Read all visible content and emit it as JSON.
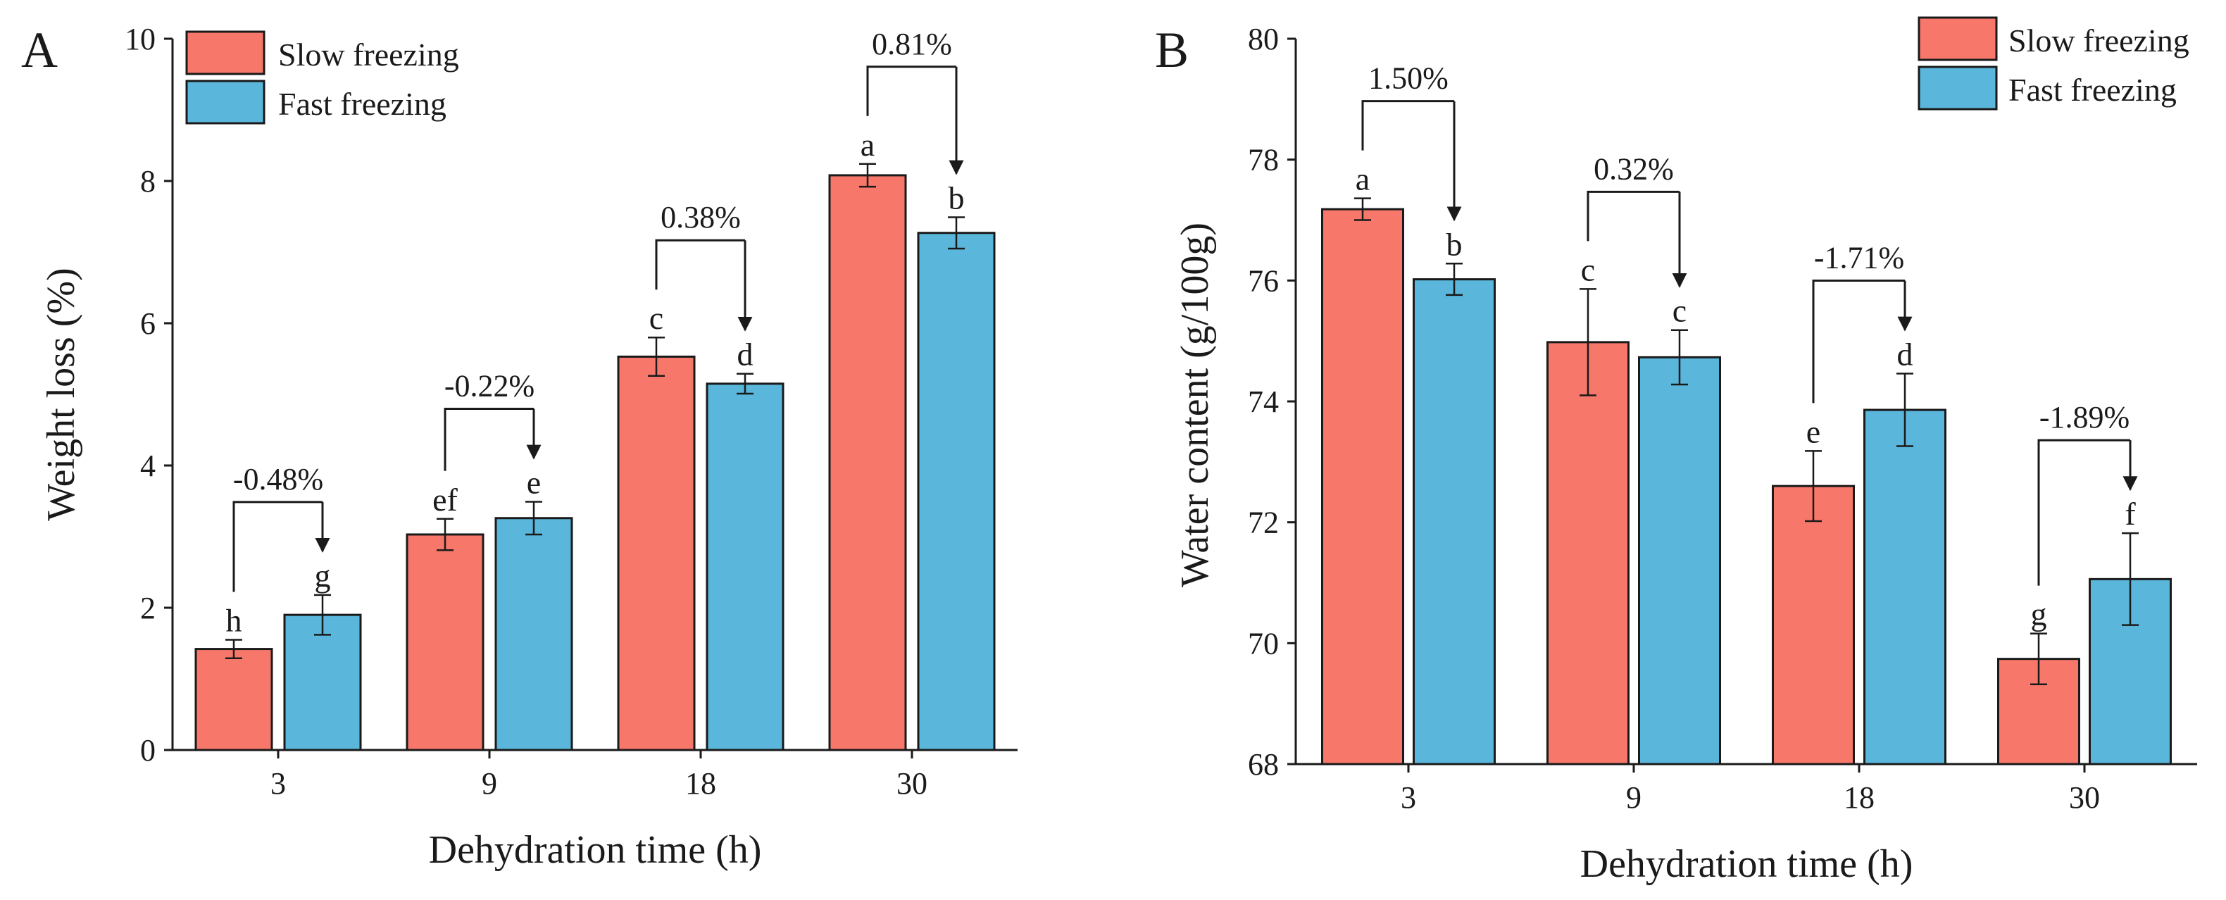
{
  "colors": {
    "slow": "#f7786b",
    "fast": "#5ab6da",
    "ink": "#1a1a1a"
  },
  "chart_data": [
    {
      "type": "bar",
      "panel": "A",
      "legend_position": "top-left",
      "xlabel": "Dehydration time (h)",
      "ylabel": "Weight loss (%)",
      "ylim": [
        0,
        10
      ],
      "yticks": [
        "0",
        "2",
        "4",
        "6",
        "8",
        "10"
      ],
      "categories": [
        "3",
        "9",
        "18",
        "30"
      ],
      "series": [
        {
          "name": "Slow freezing",
          "values": [
            1.42,
            3.03,
            5.53,
            8.08
          ],
          "errors": [
            0.13,
            0.22,
            0.27,
            0.16
          ],
          "letters": [
            "h",
            "ef",
            "c",
            "a"
          ]
        },
        {
          "name": "Fast freezing",
          "values": [
            1.9,
            3.26,
            5.15,
            7.27
          ],
          "errors": [
            0.28,
            0.23,
            0.14,
            0.22
          ],
          "letters": [
            "g",
            "e",
            "d",
            "b"
          ]
        }
      ],
      "brackets": [
        "-0.48%",
        "-0.22%",
        "0.38%",
        "0.81%"
      ]
    },
    {
      "type": "bar",
      "panel": "B",
      "legend_position": "top-right",
      "xlabel": "Dehydration time (h)",
      "ylabel": "Water content (g/100g)",
      "ylim": [
        68,
        80
      ],
      "yticks": [
        "68",
        "70",
        "72",
        "74",
        "76",
        "78",
        "80"
      ],
      "categories": [
        "3",
        "9",
        "18",
        "30"
      ],
      "series": [
        {
          "name": "Slow freezing",
          "values": [
            77.18,
            74.98,
            72.6,
            69.74
          ],
          "errors": [
            0.18,
            0.88,
            0.58,
            0.42
          ],
          "letters": [
            "a",
            "c",
            "e",
            "g"
          ]
        },
        {
          "name": "Fast freezing",
          "values": [
            76.02,
            74.73,
            73.86,
            71.06
          ],
          "errors": [
            0.26,
            0.45,
            0.6,
            0.76
          ],
          "letters": [
            "b",
            "c",
            "d",
            "f"
          ]
        }
      ],
      "brackets": [
        "1.50%",
        "0.32%",
        "-1.71%",
        "-1.89%"
      ]
    }
  ]
}
